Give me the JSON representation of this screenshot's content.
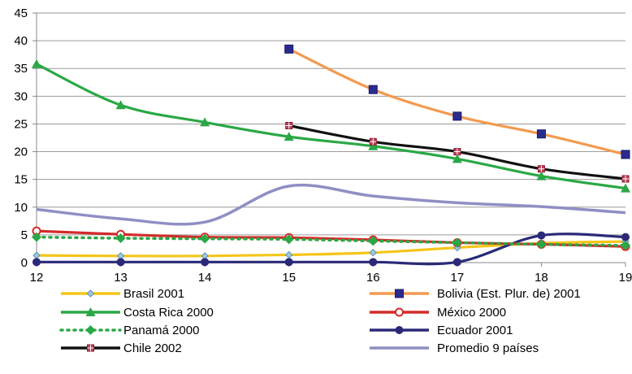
{
  "chart_data": {
    "type": "line",
    "x": [
      12,
      13,
      14,
      15,
      16,
      17,
      18,
      19
    ],
    "xlim": [
      12,
      19
    ],
    "ylim": [
      0,
      45
    ],
    "y_ticks": [
      0,
      5,
      10,
      15,
      20,
      25,
      30,
      35,
      40,
      45
    ],
    "x_tick_labels": [
      "12",
      "13",
      "14",
      "15",
      "16",
      "17",
      "18",
      "19"
    ],
    "y_tick_labels": [
      "0",
      "5",
      "10",
      "15",
      "20",
      "25",
      "30",
      "35",
      "40",
      "45"
    ],
    "grid": "horizontal",
    "legend_position": "bottom",
    "series": [
      {
        "name": "Brasil 2001",
        "color": "#f5c518",
        "marker": "diamond-small",
        "dash": false,
        "values": [
          1.3,
          1.2,
          1.2,
          1.4,
          1.8,
          2.7,
          3.5,
          3.8
        ]
      },
      {
        "name": "Bolivia (Est. Plur. de) 2001",
        "color": "#f39a4f",
        "marker": "square",
        "dash": false,
        "values": [
          null,
          null,
          null,
          38.5,
          31.2,
          26.4,
          23.2,
          19.5
        ]
      },
      {
        "name": "Costa Rica 2000",
        "color": "#2aa845",
        "marker": "triangle",
        "dash": false,
        "values": [
          35.8,
          28.4,
          25.3,
          22.7,
          21.0,
          18.7,
          15.6,
          13.4
        ]
      },
      {
        "name": "México 2000",
        "color": "#d42a2a",
        "marker": "circle-open",
        "dash": false,
        "values": [
          5.7,
          5.1,
          4.6,
          4.5,
          4.1,
          3.6,
          3.3,
          2.9
        ]
      },
      {
        "name": "Panamá 2000",
        "color": "#2aa845",
        "marker": "diamond",
        "dash": true,
        "values": [
          4.6,
          4.4,
          4.3,
          4.2,
          3.9,
          3.6,
          3.3,
          3.1
        ]
      },
      {
        "name": "Ecuador 2001",
        "color": "#2a2a78",
        "marker": "circle",
        "dash": false,
        "values": [
          0.1,
          0.1,
          0.1,
          0.1,
          0.1,
          0.1,
          4.9,
          4.6
        ]
      },
      {
        "name": "Chile 2002",
        "color": "#111111",
        "marker": "square-cross",
        "dash": false,
        "values": [
          null,
          null,
          null,
          24.7,
          21.8,
          20.0,
          16.9,
          15.1
        ]
      },
      {
        "name": "Promedio 9 países",
        "color": "#8f8fc4",
        "marker": "none",
        "dash": false,
        "values": [
          9.6,
          7.9,
          7.3,
          13.8,
          12.0,
          10.8,
          10.1,
          9.0
        ]
      }
    ]
  }
}
